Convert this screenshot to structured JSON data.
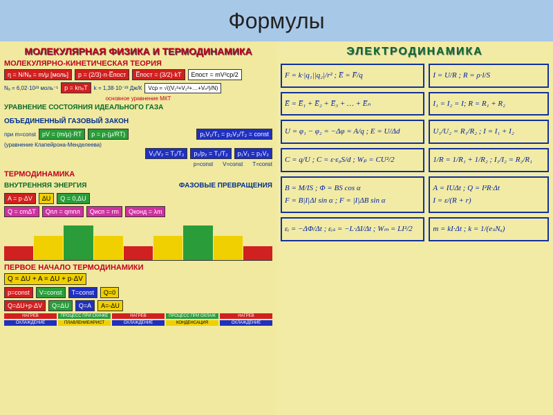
{
  "header": {
    "title": "Формулы"
  },
  "left": {
    "title": "МОЛЕКУЛЯРНАЯ ФИЗИКА И ТЕРМОДИНАМИКА",
    "mkt": {
      "heading": "МОЛЕКУЛЯРНО-КИНЕТИЧЕСКАЯ ТЕОРИЯ",
      "f1": "η = N/Nₐ = m/μ [моль]",
      "f2": "p = (2/3)·n·E̅пост",
      "f3": "E̅пост = (3/2)·kT",
      "f4": "Eпост = mV²ср/2",
      "f5": "Vср = √((V₁²+V₂²+…+Vₙ²)/N)",
      "na": "Nₐ = 6,02·10²³ моль⁻¹",
      "f6": "p = knₒT",
      "k": "k = 1,38·10⁻²³ Дж/К",
      "note": "основное уравнение МКТ"
    },
    "ideal": {
      "heading": "УРАВНЕНИЕ СОСТОЯНИЯ ИДЕАЛЬНОГО ГАЗА",
      "gaslaws": "ОБЪЕДИНЕННЫЙ ГАЗОВЫЙ ЗАКОН",
      "cond": "при m=const",
      "f1": "pV = (m/μ)·RT",
      "f2": "p = ρ·(μ/RT)",
      "clap": "(уравнение Клапейрона-Менделеева)",
      "gl_top": "p₁V₁/T₁ = p₂V₂/T₂ = const",
      "gl1": "V₁/V₂ = T₁/T₂",
      "gl2": "p₁/p₂ = T₁/T₂",
      "gl3": "p₁V₁ = p₂V₂",
      "pc": "p=const",
      "vc": "V=const",
      "tc": "T=const"
    },
    "thermo": {
      "heading": "ТЕРМОДИНАМИКА",
      "int": "ВНУТРЕННЯЯ ЭНЕРГИЯ",
      "phase": "ФАЗОВЫЕ ПРЕВРАЩЕНИЯ",
      "f1": "A = p·ΔV",
      "f2": "ΔU",
      "f3": "Q = 0,ΔU",
      "q1": "Q = cmΔT",
      "q2": "Qпл = qmпл",
      "q3": "Qисп = rm",
      "q4": "Qконд = λm",
      "first": "ПЕРВОЕ НАЧАЛО ТЕРМОДИНАМИКИ",
      "first_eq": "Q = ΔU + A = ΔU + p·ΔV",
      "r1a": "p=const",
      "r1b": "V=const",
      "r1c": "T=const",
      "r1d": "Q=0",
      "r2a": "Q=ΔU+p·ΔV",
      "r2b": "Q=ΔU",
      "r2c": "Q=A",
      "r2d": "A=-ΔU"
    },
    "phase_chart": {
      "colors": [
        "#d02020",
        "#f0d000",
        "#2a9d3a",
        "#f0d000",
        "#d02020",
        "#f0d000",
        "#2a9d3a",
        "#f0d000",
        "#d02020"
      ],
      "heights": [
        20,
        35,
        50,
        35,
        20,
        35,
        50,
        35,
        20
      ]
    },
    "cycle_chart": {
      "row1_colors": [
        "#d02020",
        "#2a9d3a",
        "#d02020",
        "#2a9d3a",
        "#d02020"
      ],
      "row1_labels": [
        "НАГРЕВ",
        "ПРОЦЕСС ПРИ СКАЧКЕ",
        "НАГРЕВ",
        "ПРОЦЕСС ПРИ ОХЛАЖ",
        "НАГРЕВ"
      ],
      "row2_colors": [
        "#2030c0",
        "#f0d000",
        "#2030c0",
        "#f0d000",
        "#2030c0"
      ],
      "row2_labels": [
        "ОХЛАЖДЕНИЕ",
        "ПЛАВЛЕНИЕ/КРИСТ",
        "ОХЛАЖДЕНИЕ",
        "КОНДЕНСАЦИЯ",
        "ОХЛАЖДЕНИЕ"
      ]
    }
  },
  "right": {
    "title": "ЭЛЕКТРОДИНАМИКА",
    "box1": "F = k·|q₁||q₂|/r² ;   E̅ = F̅/q",
    "box2": "I = U/R ;   R = ρ·l/S",
    "box3": "E̅ = E̅₁ + E̅₂ + E̅₃ + … + E̅ₙ",
    "box4": "I₁ = I₂ = I;  R = R₁ + R₂",
    "box5": "U = φ₁ − φ₂ = −Δφ = A/q ;  E = U/Δd",
    "box6": "U₁/U₂ = R₁/R₂ ;  I = I₁ + I₂",
    "box7": "C = q/U ;  C = ε·ε₀S/d ;  Wₚ = CU²/2",
    "box8": "1/R = 1/R₁ + 1/R₂ ;  I₁/I₂ = R₂/R₁",
    "box9": "B = M/IS ;  Φ = BS cos α\nF = B|I|Δl sin α ;  F = |I|ΔB sin α",
    "box10": "A = IUΔt ;  Q = I²R·Δt\nI = ε/(R + r)",
    "box11": "εᵢ = −ΔΦ/Δt ;  εᵢₛ = −L·ΔI/Δt ;  Wₘ = LI²/2",
    "box12": "m = kI·Δt ;  k = 1/(eₛNₐ)"
  },
  "colors": {
    "left_bg": "#f0e99f",
    "right_bg": "#f2eba5",
    "red": "#c00020",
    "green": "#0a6b2b",
    "blue": "#003090",
    "box_border": "#1030a0"
  }
}
